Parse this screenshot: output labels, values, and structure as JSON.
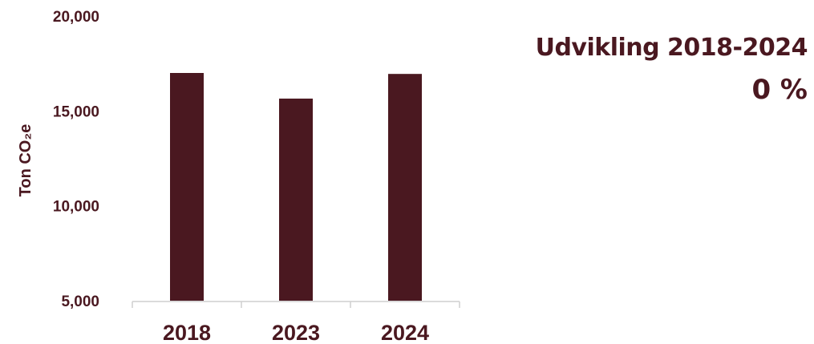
{
  "chart_data": {
    "type": "bar",
    "categories": [
      "2018",
      "2023",
      "2024"
    ],
    "values": [
      17000,
      15650,
      16950
    ],
    "ylabel": "Ton CO₂e",
    "ylim": [
      5000,
      20000
    ],
    "yticks": [
      5000,
      10000,
      15000,
      20000
    ],
    "ytick_labels": [
      "5,000",
      "10,000",
      "15,000",
      "20,000"
    ],
    "grid": false,
    "bar_color": "#4a1820",
    "text_color": "#4a1820"
  },
  "headline": {
    "title": "Udvikling 2018-2024",
    "value": "0 %"
  }
}
